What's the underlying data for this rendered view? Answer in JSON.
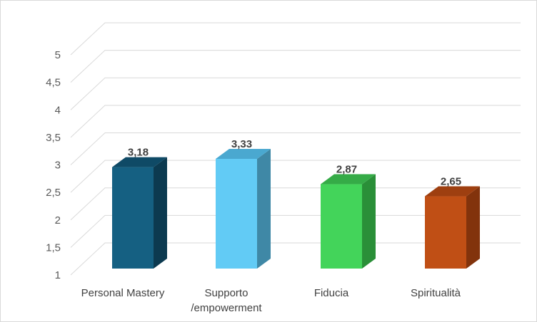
{
  "chart_data": {
    "type": "bar",
    "style": "3d-column",
    "categories": [
      [
        "Personal Mastery"
      ],
      [
        "Supporto",
        "/empowerment"
      ],
      [
        "Fiducia"
      ],
      [
        "Spiritualità"
      ]
    ],
    "values": [
      3.18,
      3.33,
      2.87,
      2.65
    ],
    "value_labels": [
      "3,18",
      "3,33",
      "2,87",
      "2,65"
    ],
    "colors": [
      {
        "front": "#156082",
        "side": "#0c3a50",
        "top": "#0f4a66"
      },
      {
        "front": "#62cbf5",
        "side": "#3f88a6",
        "top": "#4aa8d0"
      },
      {
        "front": "#43d45a",
        "side": "#2a8f38",
        "top": "#35ab47"
      },
      {
        "front": "#c04f15",
        "side": "#82330c",
        "top": "#9e3f10"
      }
    ],
    "ylim": [
      1,
      5
    ],
    "yticks": [
      "1",
      "1,5",
      "2",
      "2,5",
      "3",
      "3,5",
      "4",
      "4,5",
      "5"
    ],
    "grid": true,
    "legend": "none",
    "title": "",
    "xlabel": "",
    "ylabel": ""
  }
}
